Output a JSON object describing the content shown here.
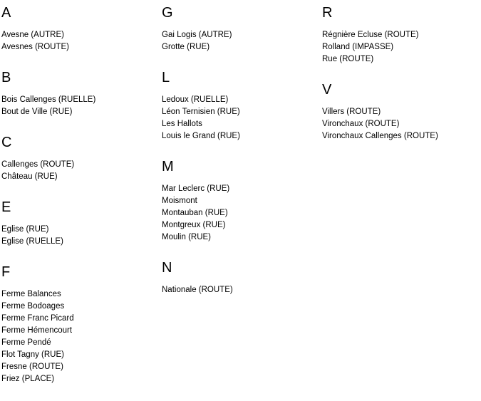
{
  "page": {
    "background_color": "#ffffff",
    "text_color": "#000000"
  },
  "index": {
    "columns": [
      {
        "sections": [
          {
            "letter": "A",
            "entries": [
              "Avesne (AUTRE)",
              "Avesnes (ROUTE)"
            ]
          },
          {
            "letter": "B",
            "entries": [
              "Bois Callenges (RUELLE)",
              "Bout de Ville (RUE)"
            ]
          },
          {
            "letter": "C",
            "entries": [
              "Callenges (ROUTE)",
              "Château (RUE)"
            ]
          },
          {
            "letter": "E",
            "entries": [
              "Eglise (RUE)",
              "Eglise (RUELLE)"
            ]
          },
          {
            "letter": "F",
            "entries": [
              "Ferme Balances",
              "Ferme Bodoages",
              "Ferme Franc Picard",
              "Ferme Hémencourt",
              "Ferme Pendé",
              "Flot Tagny (RUE)",
              "Fresne (ROUTE)",
              "Friez (PLACE)"
            ]
          }
        ]
      },
      {
        "sections": [
          {
            "letter": "G",
            "entries": [
              "Gai Logis (AUTRE)",
              "Grotte (RUE)"
            ]
          },
          {
            "letter": "L",
            "entries": [
              "Ledoux (RUELLE)",
              "Léon Ternisien (RUE)",
              "Les Hallots",
              "Louis le Grand (RUE)"
            ]
          },
          {
            "letter": "M",
            "entries": [
              "Mar Leclerc (RUE)",
              "Moismont",
              "Montauban (RUE)",
              "Montgreux (RUE)",
              "Moulin (RUE)"
            ]
          },
          {
            "letter": "N",
            "entries": [
              "Nationale (ROUTE)"
            ]
          }
        ]
      },
      {
        "sections": [
          {
            "letter": "R",
            "entries": [
              "Régnière Ecluse (ROUTE)",
              "Rolland (IMPASSE)",
              "Rue (ROUTE)"
            ]
          },
          {
            "letter": "V",
            "entries": [
              "Villers (ROUTE)",
              "Vironchaux (ROUTE)",
              "Vironchaux Callenges (ROUTE)"
            ]
          }
        ]
      }
    ]
  }
}
